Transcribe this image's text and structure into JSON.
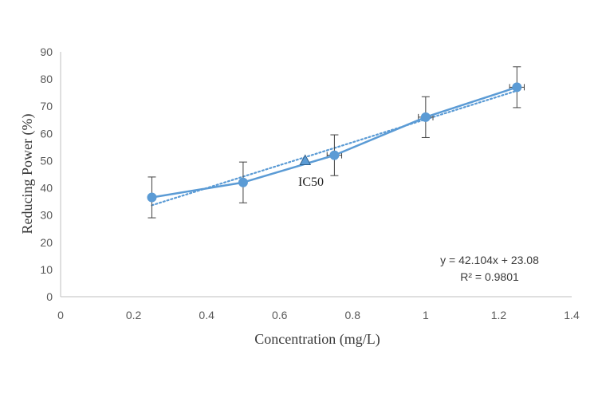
{
  "chart_data": {
    "type": "line",
    "xlabel": "Concentration (mg/L)",
    "ylabel": "Reducing Power (%)",
    "xlim": [
      0,
      1.4
    ],
    "ylim": [
      0,
      90
    ],
    "x_ticks": [
      "0",
      "0.2",
      "0.4",
      "0.6",
      "0.8",
      "1",
      "1.2",
      "1.4"
    ],
    "y_ticks": [
      "0",
      "10",
      "20",
      "30",
      "40",
      "50",
      "60",
      "70",
      "80",
      "90"
    ],
    "grid": false,
    "series": [
      {
        "x": [
          0.25,
          0.5,
          0.75,
          1.0,
          1.25
        ],
        "y": [
          36.5,
          42.0,
          52.0,
          66.0,
          77.0
        ],
        "y_error": [
          7.5,
          7.5,
          7.5,
          7.5,
          7.5
        ],
        "x_error": [
          0,
          0,
          0.02,
          0.02,
          0.02
        ],
        "color": "#5b9bd5"
      }
    ],
    "trendline": {
      "slope": 42.104,
      "intercept": 23.08,
      "x_range": [
        0.25,
        1.25
      ],
      "style": "dotted",
      "equation": "y = 42.104x + 23.08",
      "r2": "R² = 0.9801"
    },
    "annotation": {
      "label": "IC50",
      "x": 0.67,
      "y": 50,
      "marker": "triangle"
    }
  }
}
